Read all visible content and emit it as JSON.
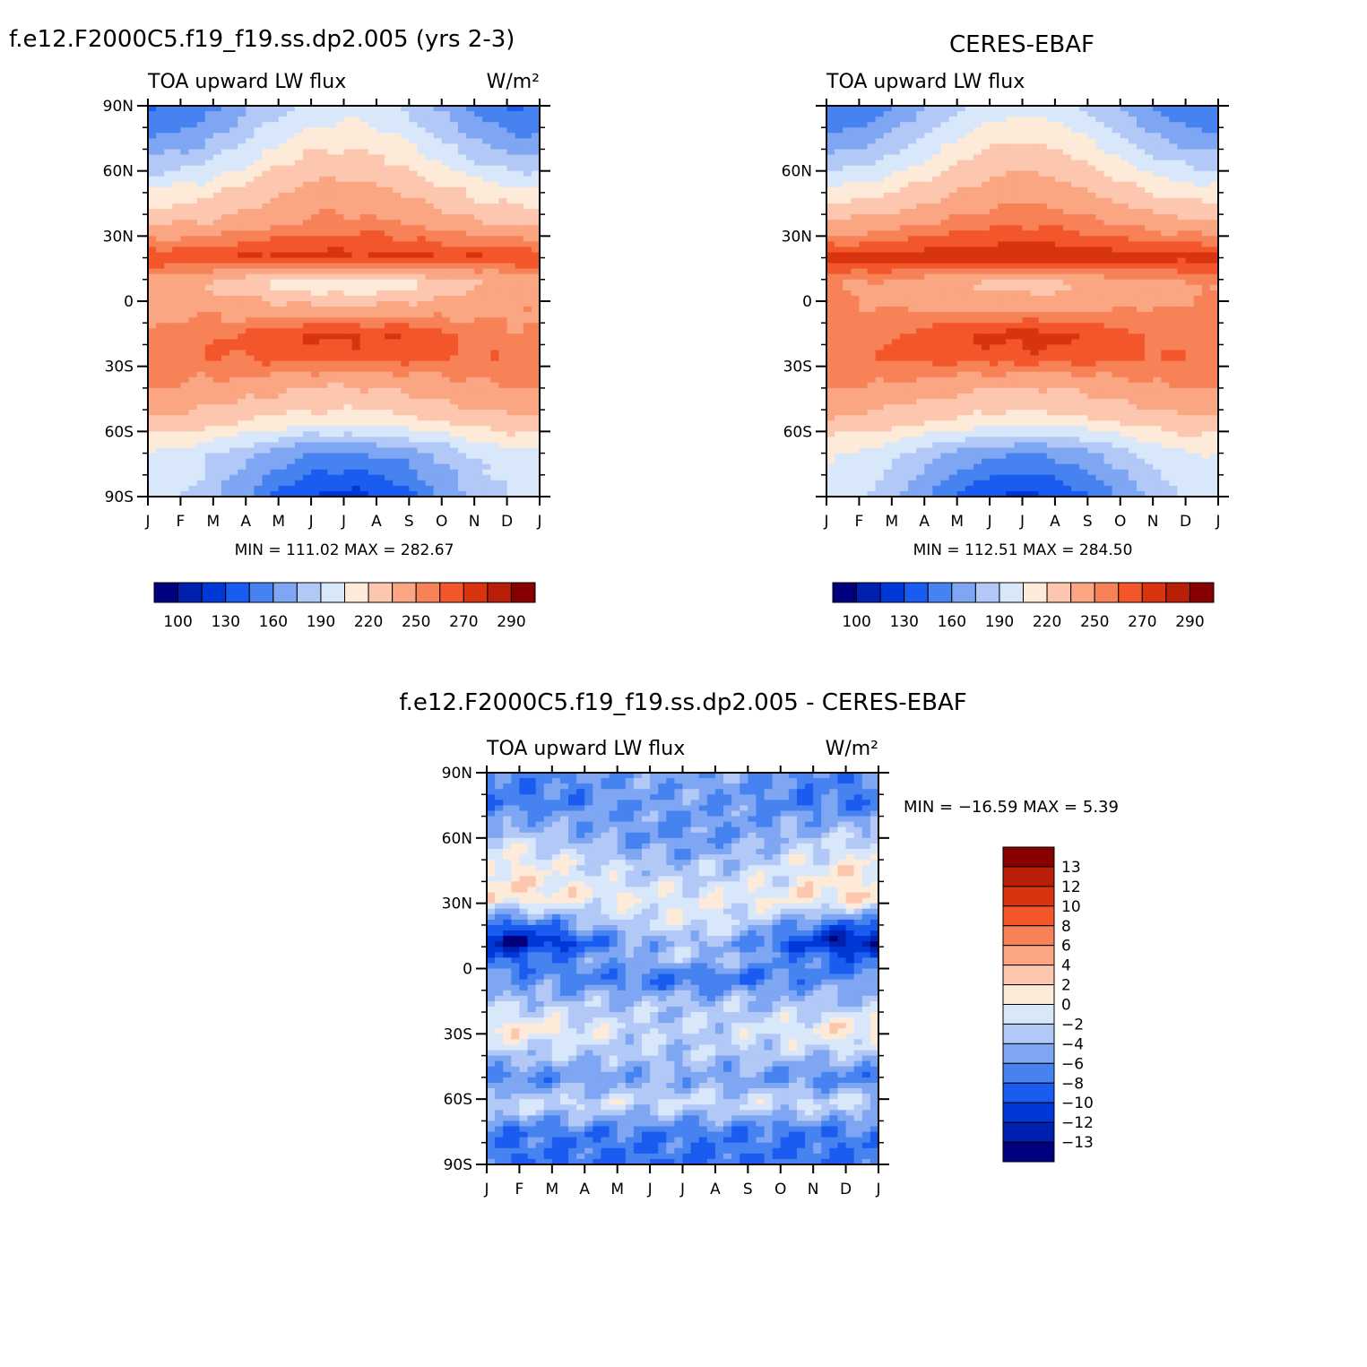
{
  "chart_data": [
    {
      "type": "heatmap",
      "panel": "model",
      "title": "f.e12.F2000C5.f19_f19.ss.dp2.005 (yrs 2-3)",
      "subtitle_left": "TOA upward LW flux",
      "units": "W/m²",
      "x_ticks": [
        "J",
        "F",
        "M",
        "A",
        "M",
        "J",
        "J",
        "A",
        "S",
        "O",
        "N",
        "D",
        "J"
      ],
      "y_ticks": [
        "90N",
        "60N",
        "30N",
        "0",
        "30S",
        "60S",
        "90S"
      ],
      "x_range": [
        0,
        12
      ],
      "y_range": [
        -90,
        90
      ],
      "stats": "MIN = 111.02 MAX = 282.67",
      "min": 111.02,
      "max": 282.67,
      "colorbar_labels": [
        "100",
        "130",
        "160",
        "190",
        "220",
        "250",
        "270",
        "290"
      ],
      "zonal_profile": [
        {
          "lat": 90,
          "value": 170,
          "amp": 28
        },
        {
          "lat": 70,
          "value": 195,
          "amp": 26
        },
        {
          "lat": 50,
          "value": 225,
          "amp": 16
        },
        {
          "lat": 35,
          "value": 245,
          "amp": 10
        },
        {
          "lat": 20,
          "value": 272,
          "amp": 2
        },
        {
          "lat": 8,
          "value": 222,
          "amp": -16
        },
        {
          "lat": 0,
          "value": 238,
          "amp": -8
        },
        {
          "lat": -15,
          "value": 262,
          "amp": 10
        },
        {
          "lat": -25,
          "value": 262,
          "amp": 4
        },
        {
          "lat": -40,
          "value": 242,
          "amp": -8
        },
        {
          "lat": -55,
          "value": 222,
          "amp": -10
        },
        {
          "lat": -70,
          "value": 180,
          "amp": -22
        },
        {
          "lat": -90,
          "value": 160,
          "amp": -35
        }
      ]
    },
    {
      "type": "heatmap",
      "panel": "obs",
      "title": "CERES-EBAF",
      "subtitle_left": "TOA upward LW flux",
      "x_ticks": [
        "J",
        "F",
        "M",
        "A",
        "M",
        "J",
        "J",
        "A",
        "S",
        "O",
        "N",
        "D",
        "J"
      ],
      "y_ticks": [
        "60N",
        "30N",
        "0",
        "30S",
        "60S"
      ],
      "x_range": [
        0,
        12
      ],
      "y_range": [
        -90,
        90
      ],
      "stats": "MIN = 112.51 MAX = 284.50",
      "min": 112.51,
      "max": 284.5,
      "colorbar_labels": [
        "100",
        "130",
        "160",
        "190",
        "220",
        "250",
        "270",
        "290"
      ],
      "zonal_profile": [
        {
          "lat": 90,
          "value": 172,
          "amp": 28
        },
        {
          "lat": 70,
          "value": 198,
          "amp": 26
        },
        {
          "lat": 50,
          "value": 228,
          "amp": 16
        },
        {
          "lat": 35,
          "value": 250,
          "amp": 10
        },
        {
          "lat": 20,
          "value": 276,
          "amp": 2
        },
        {
          "lat": 8,
          "value": 240,
          "amp": -10
        },
        {
          "lat": 0,
          "value": 245,
          "amp": -6
        },
        {
          "lat": -15,
          "value": 263,
          "amp": 10
        },
        {
          "lat": -25,
          "value": 264,
          "amp": 4
        },
        {
          "lat": -40,
          "value": 243,
          "amp": -8
        },
        {
          "lat": -55,
          "value": 223,
          "amp": -10
        },
        {
          "lat": -70,
          "value": 183,
          "amp": -22
        },
        {
          "lat": -90,
          "value": 162,
          "amp": -35
        }
      ]
    },
    {
      "type": "heatmap",
      "panel": "difference",
      "title": "f.e12.F2000C5.f19_f19.ss.dp2.005 - CERES-EBAF",
      "subtitle_left": "TOA upward LW flux",
      "units": "W/m²",
      "x_ticks": [
        "J",
        "F",
        "M",
        "A",
        "M",
        "J",
        "J",
        "A",
        "S",
        "O",
        "N",
        "D",
        "J"
      ],
      "y_ticks": [
        "90N",
        "60N",
        "30N",
        "0",
        "30S",
        "60S",
        "90S"
      ],
      "x_range": [
        0,
        12
      ],
      "y_range": [
        -90,
        90
      ],
      "stats": "MIN = −16.59 MAX =    5.39",
      "min": -16.59,
      "max": 5.39,
      "colorbar_labels": [
        "13",
        "12",
        "10",
        "8",
        "6",
        "4",
        "2",
        "0",
        "−2",
        "−4",
        "−6",
        "−8",
        "−10",
        "−12",
        "−13"
      ],
      "zonal_profile": [
        {
          "lat": 90,
          "value": -6,
          "amp": 1
        },
        {
          "lat": 75,
          "value": -6.5,
          "amp": 1
        },
        {
          "lat": 60,
          "value": -4,
          "amp": -2
        },
        {
          "lat": 45,
          "value": -1,
          "amp": -2
        },
        {
          "lat": 32,
          "value": 0.5,
          "amp": -1
        },
        {
          "lat": 20,
          "value": -5,
          "amp": 4
        },
        {
          "lat": 12,
          "value": -9,
          "amp": 5
        },
        {
          "lat": 5,
          "value": -6,
          "amp": 3
        },
        {
          "lat": -5,
          "value": -7,
          "amp": -1
        },
        {
          "lat": -15,
          "value": -3.5,
          "amp": 0
        },
        {
          "lat": -28,
          "value": -0.5,
          "amp": -2
        },
        {
          "lat": -40,
          "value": -3,
          "amp": 0
        },
        {
          "lat": -50,
          "value": -6,
          "amp": 1
        },
        {
          "lat": -62,
          "value": -1.5,
          "amp": 0
        },
        {
          "lat": -75,
          "value": -7.5,
          "amp": 0
        },
        {
          "lat": -90,
          "value": -8,
          "amp": 0
        }
      ]
    }
  ],
  "colors": {
    "abs_palette": [
      "#00007F",
      "#0020B0",
      "#0038D8",
      "#1A5BF0",
      "#4682F0",
      "#7FA6F2",
      "#B2C8F7",
      "#D8E8FA",
      "#FDEAD9",
      "#FCC7AE",
      "#FAA683",
      "#F78257",
      "#F2562A",
      "#D93410",
      "#B81E08",
      "#870000"
    ],
    "abs_levels": [
      100,
      115,
      130,
      145,
      160,
      175,
      190,
      205,
      220,
      235,
      250,
      260,
      270,
      280,
      290
    ],
    "diff_palette": [
      "#00007F",
      "#0020B0",
      "#0038D8",
      "#1A5BF0",
      "#4682F0",
      "#7FA6F2",
      "#B2C8F7",
      "#D8E8FA",
      "#FDEAD9",
      "#FCC7AE",
      "#FAA683",
      "#F78257",
      "#F2562A",
      "#D93410",
      "#B81E08",
      "#870000"
    ],
    "diff_levels": [
      -13,
      -12,
      -10,
      -8,
      -6,
      -4,
      -2,
      0,
      2,
      4,
      6,
      8,
      10,
      12,
      13
    ]
  }
}
